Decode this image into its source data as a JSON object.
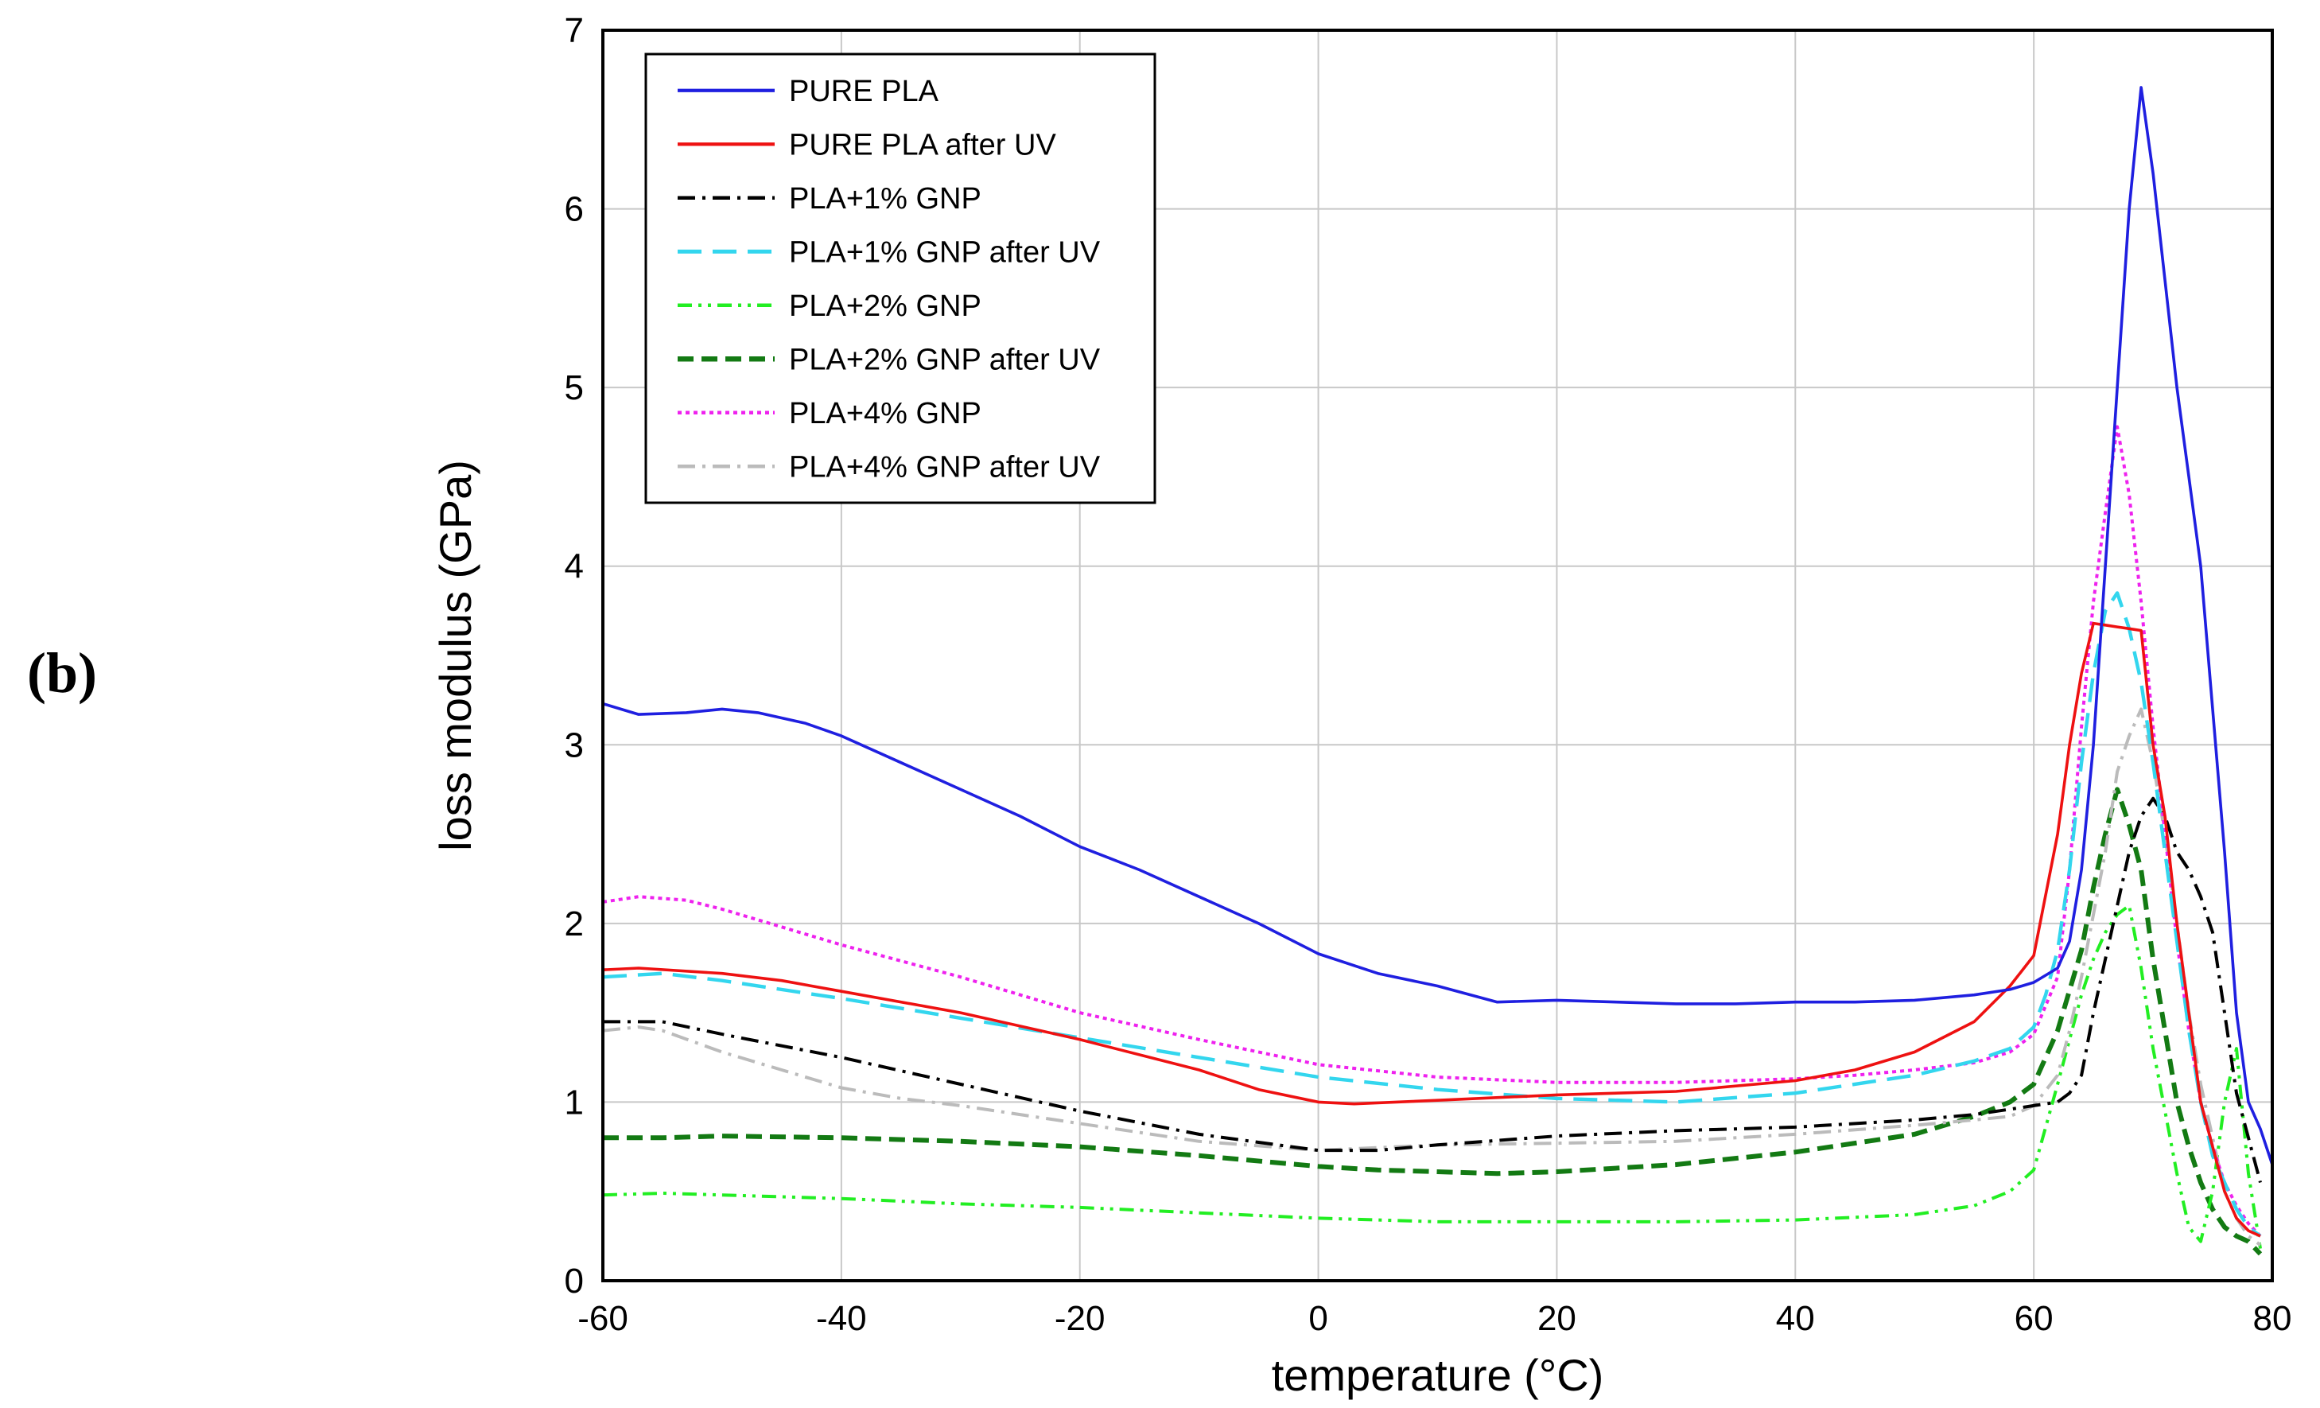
{
  "panel_label": "(b)",
  "chart_data": {
    "type": "line",
    "title": "",
    "xlabel": "temperature (°C)",
    "ylabel": "loss modulus (GPa)",
    "xlim": [
      -60,
      80
    ],
    "ylim": [
      0,
      7
    ],
    "xticks": [
      "-60",
      "-40",
      "-20",
      "0",
      "20",
      "40",
      "60",
      "80"
    ],
    "yticks": [
      "0",
      "1",
      "2",
      "3",
      "4",
      "5",
      "6",
      "7"
    ],
    "grid": true,
    "legend_position": "top-left",
    "series": [
      {
        "name": "PURE PLA",
        "color": "#1f1fe0",
        "dash": "solid",
        "x": [
          -60,
          -57,
          -53,
          -50,
          -47,
          -43,
          -40,
          -35,
          -30,
          -25,
          -20,
          -15,
          -10,
          -5,
          0,
          5,
          10,
          15,
          20,
          25,
          30,
          35,
          40,
          45,
          50,
          55,
          58,
          60,
          62,
          63,
          64,
          65,
          66,
          67,
          68,
          69,
          70,
          71,
          72,
          73,
          74,
          75,
          76,
          77,
          78,
          79,
          80
        ],
        "y": [
          3.23,
          3.17,
          3.18,
          3.2,
          3.18,
          3.12,
          3.05,
          2.9,
          2.75,
          2.6,
          2.43,
          2.3,
          2.15,
          2.0,
          1.83,
          1.72,
          1.65,
          1.56,
          1.57,
          1.56,
          1.55,
          1.55,
          1.56,
          1.56,
          1.57,
          1.6,
          1.63,
          1.67,
          1.75,
          1.9,
          2.3,
          3.0,
          4.0,
          5.0,
          6.0,
          6.68,
          6.2,
          5.6,
          5.0,
          4.5,
          4.0,
          3.2,
          2.4,
          1.5,
          1.0,
          0.85,
          0.65
        ]
      },
      {
        "name": "PURE PLA after UV",
        "color": "#ee1111",
        "dash": "solid",
        "x": [
          -60,
          -57,
          -50,
          -45,
          -40,
          -30,
          -20,
          -10,
          -5,
          0,
          3,
          10,
          20,
          30,
          40,
          45,
          50,
          55,
          58,
          60,
          62,
          63,
          64,
          65,
          66,
          67,
          68,
          69,
          70,
          71,
          72,
          73,
          74,
          75,
          76,
          77,
          78,
          79
        ],
        "y": [
          1.74,
          1.75,
          1.72,
          1.68,
          1.62,
          1.5,
          1.35,
          1.18,
          1.07,
          1.0,
          0.99,
          1.01,
          1.04,
          1.06,
          1.12,
          1.18,
          1.28,
          1.45,
          1.65,
          1.82,
          2.5,
          3.0,
          3.4,
          3.68,
          3.67,
          3.66,
          3.65,
          3.64,
          3.0,
          2.6,
          2.0,
          1.5,
          1.0,
          0.75,
          0.5,
          0.35,
          0.28,
          0.25
        ]
      },
      {
        "name": "PLA+1% GNP",
        "color": "#000000",
        "dash": "dashdot",
        "x": [
          -60,
          -55,
          -50,
          -40,
          -30,
          -20,
          -10,
          0,
          5,
          10,
          20,
          30,
          40,
          50,
          55,
          58,
          60,
          62,
          63,
          64,
          65,
          66,
          67,
          68,
          69,
          70,
          71,
          72,
          73,
          74,
          75,
          76,
          77,
          78,
          79
        ],
        "y": [
          1.45,
          1.45,
          1.38,
          1.25,
          1.1,
          0.95,
          0.82,
          0.73,
          0.73,
          0.76,
          0.81,
          0.84,
          0.86,
          0.9,
          0.93,
          0.96,
          0.98,
          1.0,
          1.05,
          1.15,
          1.5,
          1.8,
          2.1,
          2.4,
          2.6,
          2.7,
          2.6,
          2.4,
          2.3,
          2.15,
          1.95,
          1.5,
          1.05,
          0.8,
          0.55
        ]
      },
      {
        "name": "PLA+1% GNP after UV",
        "color": "#33d6ee",
        "dash": "longdash",
        "x": [
          -60,
          -55,
          -50,
          -40,
          -30,
          -20,
          -10,
          0,
          10,
          20,
          30,
          40,
          50,
          55,
          58,
          60,
          61,
          62,
          63,
          64,
          65,
          66,
          67,
          68,
          69,
          70,
          71,
          72,
          73,
          74,
          75,
          76,
          77,
          78,
          79
        ],
        "y": [
          1.7,
          1.72,
          1.68,
          1.58,
          1.47,
          1.36,
          1.25,
          1.14,
          1.07,
          1.02,
          1.0,
          1.05,
          1.15,
          1.23,
          1.3,
          1.42,
          1.6,
          1.85,
          2.3,
          2.9,
          3.4,
          3.75,
          3.85,
          3.65,
          3.35,
          2.9,
          2.4,
          1.9,
          1.4,
          1.0,
          0.7,
          0.55,
          0.4,
          0.3,
          0.25
        ]
      },
      {
        "name": "PLA+2% GNP",
        "color": "#22ee22",
        "dash": "dashdotdot",
        "x": [
          -60,
          -55,
          -50,
          -40,
          -30,
          -20,
          -10,
          0,
          10,
          20,
          30,
          40,
          50,
          55,
          58,
          60,
          62,
          64,
          65,
          66,
          67,
          68,
          69,
          70,
          71,
          72,
          73,
          74,
          75,
          76,
          77,
          78,
          79
        ],
        "y": [
          0.48,
          0.49,
          0.48,
          0.46,
          0.43,
          0.41,
          0.38,
          0.35,
          0.33,
          0.33,
          0.33,
          0.34,
          0.37,
          0.42,
          0.5,
          0.62,
          1.1,
          1.6,
          1.8,
          1.95,
          2.05,
          2.1,
          1.75,
          1.3,
          0.95,
          0.6,
          0.3,
          0.22,
          0.5,
          1.0,
          1.3,
          0.6,
          0.18
        ]
      },
      {
        "name": "PLA+2% GNP after UV",
        "color": "#137a13",
        "dash": "bigdash",
        "x": [
          -60,
          -55,
          -50,
          -40,
          -30,
          -20,
          -10,
          0,
          5,
          10,
          15,
          20,
          30,
          40,
          50,
          55,
          58,
          60,
          62,
          64,
          65,
          66,
          67,
          68,
          69,
          70,
          71,
          72,
          73,
          74,
          75,
          76,
          77,
          78,
          79
        ],
        "y": [
          0.8,
          0.8,
          0.81,
          0.8,
          0.78,
          0.75,
          0.7,
          0.64,
          0.62,
          0.61,
          0.6,
          0.61,
          0.65,
          0.72,
          0.82,
          0.92,
          1.0,
          1.1,
          1.4,
          1.85,
          2.2,
          2.5,
          2.75,
          2.55,
          2.3,
          1.8,
          1.4,
          1.0,
          0.75,
          0.55,
          0.4,
          0.3,
          0.25,
          0.22,
          0.15
        ]
      },
      {
        "name": "PLA+4% GNP",
        "color": "#ee22ee",
        "dash": "dotted",
        "x": [
          -60,
          -57,
          -53,
          -50,
          -45,
          -40,
          -30,
          -20,
          -10,
          0,
          10,
          20,
          30,
          40,
          45,
          50,
          55,
          58,
          60,
          62,
          63,
          64,
          65,
          66,
          67,
          68,
          69,
          70,
          71,
          72,
          73,
          74,
          75,
          76,
          77,
          78,
          79
        ],
        "y": [
          2.12,
          2.15,
          2.13,
          2.08,
          1.98,
          1.88,
          1.7,
          1.5,
          1.35,
          1.21,
          1.14,
          1.11,
          1.11,
          1.13,
          1.15,
          1.18,
          1.22,
          1.28,
          1.38,
          1.7,
          2.3,
          3.1,
          3.8,
          4.3,
          4.78,
          4.4,
          3.8,
          3.1,
          2.5,
          1.9,
          1.4,
          1.0,
          0.75,
          0.55,
          0.42,
          0.32,
          0.25
        ]
      },
      {
        "name": "PLA+4% GNP after UV",
        "color": "#bbbbbb",
        "dash": "dashdot",
        "x": [
          -60,
          -57,
          -55,
          -50,
          -45,
          -40,
          -35,
          -30,
          -20,
          -10,
          0,
          10,
          20,
          30,
          40,
          50,
          55,
          58,
          60,
          62,
          63,
          64,
          65,
          66,
          67,
          68,
          69,
          70,
          71,
          72,
          73,
          74,
          75,
          76,
          77,
          78,
          79
        ],
        "y": [
          1.4,
          1.42,
          1.4,
          1.28,
          1.18,
          1.08,
          1.02,
          0.98,
          0.88,
          0.78,
          0.73,
          0.76,
          0.77,
          0.78,
          0.82,
          0.87,
          0.9,
          0.92,
          0.98,
          1.15,
          1.4,
          1.7,
          2.05,
          2.4,
          2.85,
          3.05,
          3.2,
          2.9,
          2.5,
          2.0,
          1.5,
          1.1,
          0.8,
          0.5,
          0.35,
          0.25,
          0.2
        ]
      }
    ]
  }
}
